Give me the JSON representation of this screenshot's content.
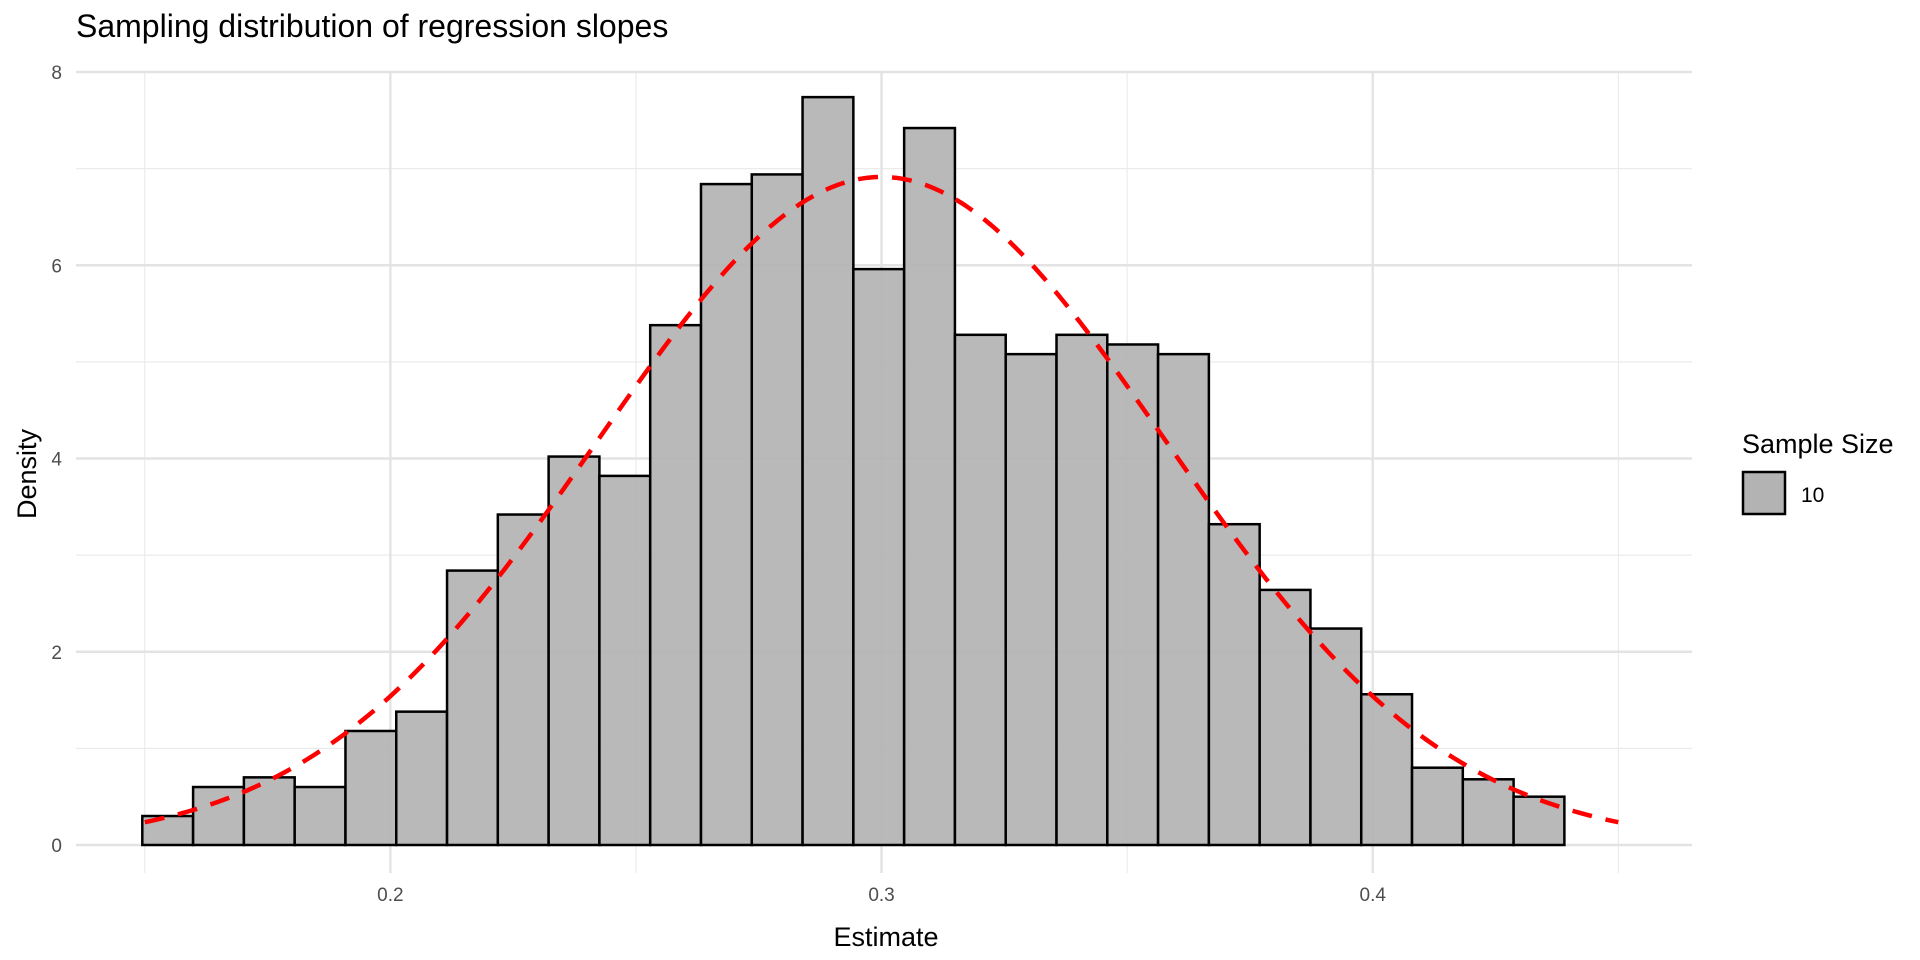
{
  "chart_data": {
    "type": "histogram",
    "title": "Sampling distribution of regression slopes",
    "xlabel": "Estimate",
    "ylabel": "Density",
    "xlim": [
      0.136,
      0.465
    ],
    "ylim": [
      0,
      8
    ],
    "x_ticks": [
      0.2,
      0.3,
      0.4
    ],
    "x_tick_labels": [
      "0.2",
      "0.3",
      "0.4"
    ],
    "x_minor": [
      0.15,
      0.25,
      0.35,
      0.45
    ],
    "y_ticks": [
      0,
      2,
      4,
      6,
      8
    ],
    "y_tick_labels": [
      "0",
      "2",
      "4",
      "6",
      "8"
    ],
    "y_minor": [
      1,
      3,
      5,
      7
    ],
    "bins": {
      "start": 0.1495,
      "width": 0.01034,
      "densities": [
        0.3,
        0.6,
        0.7,
        0.6,
        1.18,
        1.38,
        2.84,
        3.42,
        4.02,
        3.82,
        5.38,
        6.84,
        6.94,
        7.74,
        5.96,
        7.42,
        5.28,
        5.08,
        5.28,
        5.18,
        5.08,
        3.32,
        2.64,
        2.24,
        1.56,
        0.8,
        0.68,
        0.5
      ]
    },
    "bar_fill": "#b3b3b3",
    "bar_stroke": "#000000",
    "normal_curve": {
      "mean": 0.3,
      "sd": 0.0577,
      "x_range": [
        0.15,
        0.45
      ],
      "color": "#ff0000",
      "style": "dashed"
    },
    "legend": {
      "title": "Sample Size",
      "entries": [
        {
          "label": "10",
          "color": "#b3b3b3"
        }
      ],
      "placement": "right"
    }
  }
}
